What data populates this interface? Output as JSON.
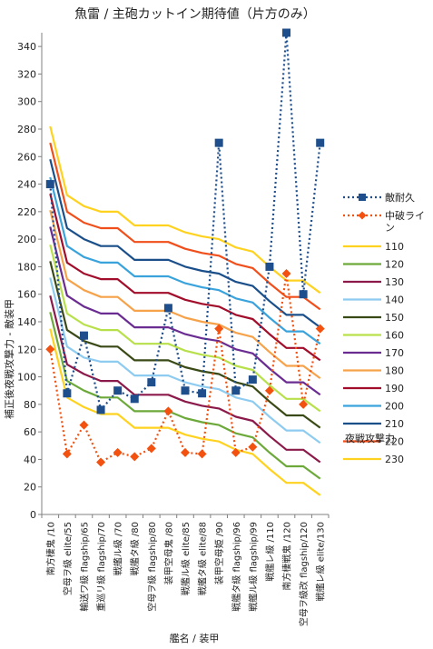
{
  "chart_data": {
    "type": "line",
    "title": "魚雷 / 主砲カットイン期待値（片方のみ）",
    "xlabel": "艦名 / 装甲",
    "ylabel": "補正後夜戦攻撃力 - 敵装甲",
    "ylim": [
      0,
      350
    ],
    "yticks": [
      0,
      20,
      40,
      60,
      80,
      100,
      120,
      140,
      160,
      180,
      200,
      220,
      240,
      260,
      280,
      300,
      320,
      340
    ],
    "grid": false,
    "legend_position": "right",
    "legend_extra_label": "夜戦攻撃力",
    "categories": [
      "南方棲鬼 /10",
      "空母ヲ級 elite/55",
      "輸送ワ級 flagship/65",
      "重巡リ級 flagship/70",
      "戦艦ル級 /70",
      "戦艦タ級 /80",
      "空母ヲ級 flagship/80",
      "装甲空母鬼 /80",
      "戦艦ル級 elite/85",
      "戦艦タ級 elite/88",
      "装甲空母姫 /90",
      "戦艦タ級 flagship/96",
      "戦艦ル級 flagship/99",
      "戦艦レ級 /110",
      "南方棲戦鬼 /120",
      "空母ヲ級改 flagship/120",
      "戦艦レ級 elite/130"
    ],
    "series": [
      {
        "name": "敵耐久",
        "color": "#1f4e8c",
        "style": "dotted-square",
        "values": [
          240,
          88,
          130,
          76,
          90,
          84,
          96,
          150,
          90,
          88,
          270,
          90,
          98,
          180,
          350,
          160,
          270
        ]
      },
      {
        "name": "中破ライン",
        "color": "#f2510f",
        "style": "dotted-diamond",
        "values": [
          120,
          44,
          65,
          38,
          45,
          42,
          48,
          75,
          45,
          44,
          135,
          45,
          49,
          90,
          175,
          80,
          135
        ]
      },
      {
        "name": "110",
        "color": "#ffd21f",
        "style": "solid",
        "values": [
          135,
          85,
          78,
          73,
          73,
          63,
          63,
          63,
          58,
          55,
          53,
          47,
          44,
          33,
          23,
          23,
          14
        ]
      },
      {
        "name": "120",
        "color": "#6ca93a",
        "style": "solid",
        "values": [
          147,
          97,
          90,
          85,
          85,
          75,
          75,
          75,
          70,
          67,
          65,
          59,
          56,
          45,
          35,
          35,
          26
        ]
      },
      {
        "name": "130",
        "color": "#8b1a4a",
        "style": "solid",
        "values": [
          159,
          109,
          102,
          97,
          97,
          87,
          87,
          87,
          82,
          79,
          77,
          71,
          68,
          57,
          47,
          47,
          38
        ]
      },
      {
        "name": "140",
        "color": "#8ecbf0",
        "style": "solid",
        "values": [
          172,
          122,
          114,
          111,
          111,
          101,
          101,
          101,
          96,
          93,
          91,
          85,
          82,
          71,
          61,
          61,
          52
        ]
      },
      {
        "name": "150",
        "color": "#3a4a16",
        "style": "solid",
        "values": [
          184,
          134,
          126,
          122,
          122,
          112,
          112,
          112,
          107,
          104,
          102,
          96,
          93,
          82,
          72,
          72,
          63
        ]
      },
      {
        "name": "160",
        "color": "#b8e04a",
        "style": "solid",
        "values": [
          196,
          146,
          138,
          134,
          134,
          124,
          124,
          124,
          119,
          116,
          114,
          108,
          105,
          94,
          84,
          84,
          75
        ]
      },
      {
        "name": "170",
        "color": "#6a2c91",
        "style": "solid",
        "values": [
          209,
          159,
          151,
          146,
          146,
          136,
          136,
          136,
          131,
          128,
          126,
          120,
          117,
          106,
          96,
          96,
          87
        ]
      },
      {
        "name": "180",
        "color": "#f6a24a",
        "style": "solid",
        "values": [
          221,
          171,
          163,
          158,
          158,
          148,
          148,
          148,
          143,
          140,
          138,
          132,
          129,
          118,
          108,
          108,
          99
        ]
      },
      {
        "name": "190",
        "color": "#a10d2a",
        "style": "solid",
        "values": [
          233,
          183,
          175,
          171,
          171,
          161,
          161,
          161,
          156,
          153,
          151,
          145,
          142,
          131,
          121,
          121,
          112
        ]
      },
      {
        "name": "200",
        "color": "#3aa3dc",
        "style": "solid",
        "values": [
          245,
          195,
          187,
          183,
          183,
          173,
          173,
          173,
          168,
          165,
          163,
          157,
          154,
          143,
          133,
          133,
          124
        ]
      },
      {
        "name": "210",
        "color": "#1a4f8a",
        "style": "solid",
        "values": [
          258,
          208,
          200,
          195,
          195,
          185,
          185,
          185,
          180,
          177,
          175,
          169,
          166,
          155,
          145,
          145,
          136
        ]
      },
      {
        "name": "220",
        "color": "#f04e1a",
        "style": "solid",
        "values": [
          270,
          220,
          212,
          208,
          208,
          198,
          198,
          198,
          193,
          190,
          188,
          182,
          179,
          168,
          158,
          158,
          149
        ]
      },
      {
        "name": "230",
        "color": "#ffd21f",
        "style": "solid",
        "values": [
          282,
          232,
          224,
          220,
          220,
          210,
          210,
          210,
          205,
          202,
          200,
          194,
          191,
          180,
          170,
          170,
          161
        ]
      }
    ]
  }
}
